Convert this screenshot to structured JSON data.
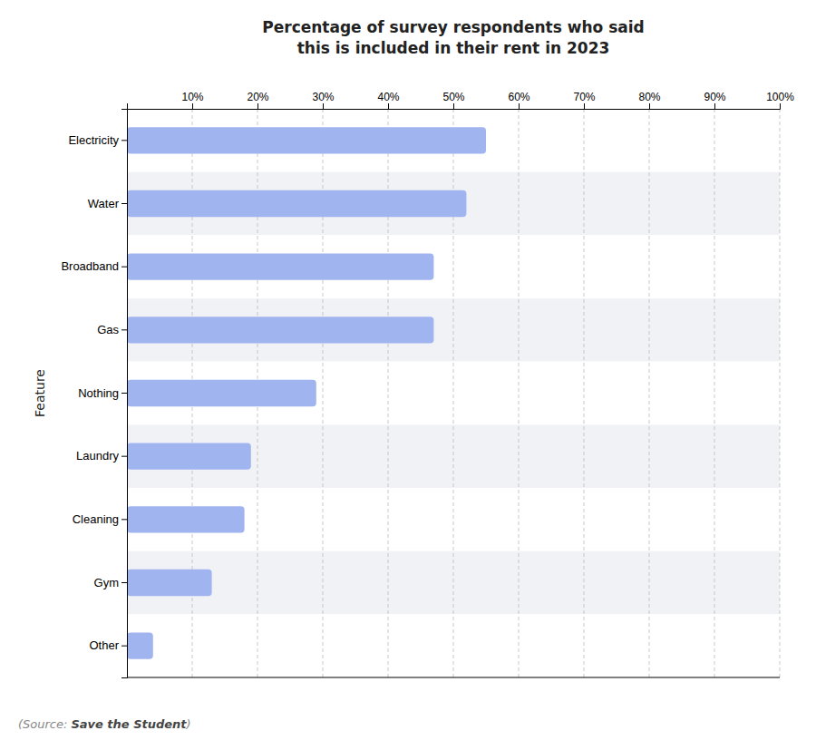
{
  "chart_data": {
    "type": "bar",
    "orientation": "horizontal",
    "title": "Percentage of survey respondents who said\nthis is included in their rent in 2023",
    "y_label": "Feature",
    "categories": [
      "Electricity",
      "Water",
      "Broadband",
      "Gas",
      "Nothing",
      "Laundry",
      "Cleaning",
      "Gym",
      "Other"
    ],
    "values": [
      55,
      52,
      47,
      47,
      29,
      19,
      18,
      13,
      4
    ],
    "color": "#a0b4f0",
    "xlim": [
      0,
      100
    ],
    "xticks": [
      {
        "value": 10,
        "label": "10%"
      },
      {
        "value": 20,
        "label": "20%"
      },
      {
        "value": 30,
        "label": "30%"
      },
      {
        "value": 40,
        "label": "40%"
      },
      {
        "value": 50,
        "label": "50%"
      },
      {
        "value": 60,
        "label": "60%"
      },
      {
        "value": 70,
        "label": "70%"
      },
      {
        "value": 80,
        "label": "80%"
      },
      {
        "value": 90,
        "label": "90%"
      },
      {
        "value": 100,
        "label": "100%"
      }
    ],
    "grid": true,
    "annotations": [
      "(Source:",
      "Save the Student",
      ")"
    ]
  }
}
